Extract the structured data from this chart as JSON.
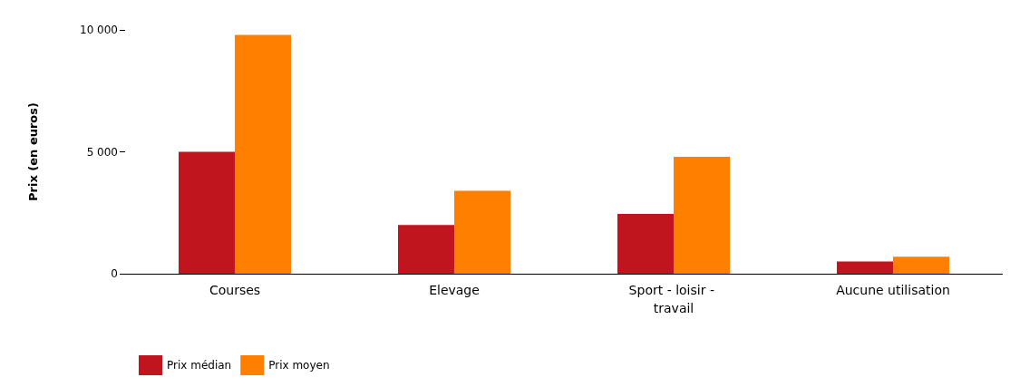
{
  "chart_data": {
    "type": "bar",
    "ylabel": "Prix (en euros)",
    "categories": [
      "Courses",
      "Elevage",
      "Sport - loisir - travail",
      "Aucune utilisation"
    ],
    "series": [
      {
        "name": "Prix médian",
        "color": "#c0141f",
        "values": [
          5000,
          2000,
          2450,
          500
        ]
      },
      {
        "name": "Prix moyen",
        "color": "#ff8000",
        "values": [
          9800,
          3400,
          4800,
          700
        ]
      }
    ],
    "ylim": [
      0,
      10000
    ],
    "yticks": [
      {
        "value": 0,
        "label": "0"
      },
      {
        "value": 5000,
        "label": "5 000"
      },
      {
        "value": 10000,
        "label": "10 000"
      }
    ],
    "grid": false,
    "legend": "bottom left"
  }
}
